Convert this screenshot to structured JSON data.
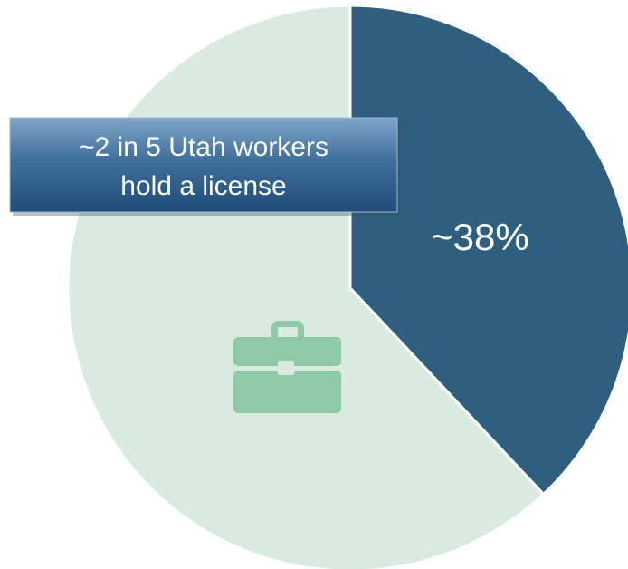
{
  "chart_data": {
    "type": "pie",
    "values": [
      38,
      62
    ],
    "value_labels": [
      "~38%",
      null
    ],
    "colors": [
      "#2e5f7f",
      "#d9ebe0"
    ],
    "start_angle": 0,
    "direction": "clockwise",
    "annotation": [
      "~2 in 5 Utah workers",
      "hold a license"
    ]
  }
}
